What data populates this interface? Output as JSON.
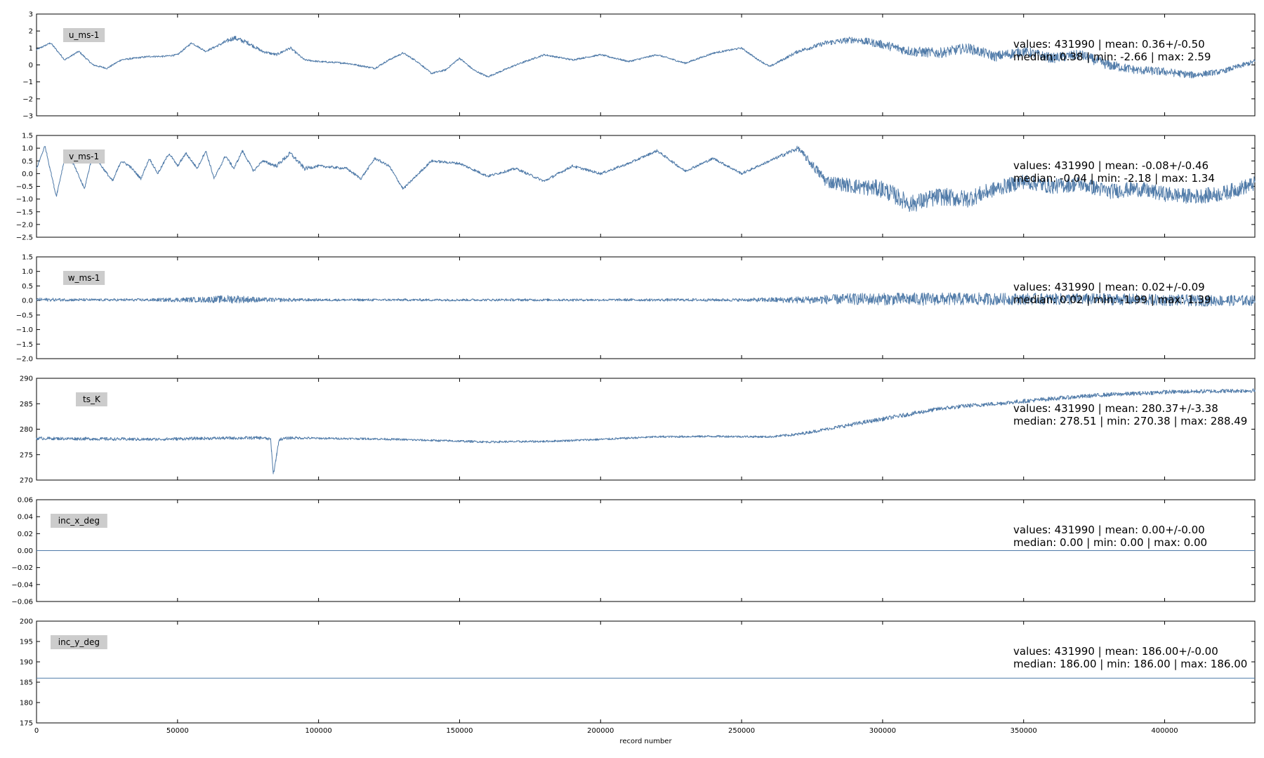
{
  "figure": {
    "xlabel": "record number"
  },
  "colors": {
    "series": "#4f7aa8",
    "label_box": "#cccccc",
    "axes": "#000000"
  },
  "chart_data": [
    {
      "type": "line",
      "name": "u_ms-1",
      "ylim": [
        -3,
        3
      ],
      "yticks": [
        "3",
        "2",
        "1",
        "0",
        "−1",
        "−2",
        "−3"
      ],
      "xlim": [
        0,
        431990
      ],
      "xticks": [
        "0",
        "50000",
        "100000",
        "150000",
        "200000",
        "250000",
        "300000",
        "350000",
        "400000"
      ],
      "stats_line1": "values: 431990 | mean: 0.36+/-0.50",
      "stats_line2": "median: 0.38 | min: -2.66 | max: 2.59",
      "x": [
        0,
        5000,
        10000,
        15000,
        20000,
        25000,
        30000,
        40000,
        45000,
        50000,
        55000,
        60000,
        65000,
        70000,
        75000,
        80000,
        85000,
        90000,
        95000,
        100000,
        110000,
        120000,
        125000,
        130000,
        135000,
        140000,
        145000,
        150000,
        155000,
        160000,
        170000,
        180000,
        190000,
        200000,
        210000,
        220000,
        230000,
        240000,
        250000,
        255000,
        260000,
        270000,
        280000,
        290000,
        300000,
        310000,
        320000,
        330000,
        340000,
        350000,
        360000,
        370000,
        380000,
        390000,
        400000,
        410000,
        420000,
        431990
      ],
      "y": [
        0.9,
        1.3,
        0.3,
        0.8,
        0.0,
        -0.2,
        0.3,
        0.5,
        0.5,
        0.6,
        1.3,
        0.8,
        1.2,
        1.6,
        1.3,
        0.8,
        0.6,
        1.0,
        0.3,
        0.2,
        0.1,
        -0.2,
        0.3,
        0.7,
        0.2,
        -0.5,
        -0.3,
        0.4,
        -0.3,
        -0.7,
        0.0,
        0.6,
        0.3,
        0.6,
        0.2,
        0.6,
        0.1,
        0.7,
        1.0,
        0.4,
        -0.1,
        0.8,
        1.3,
        1.5,
        1.2,
        0.8,
        0.7,
        1.0,
        0.5,
        0.8,
        0.4,
        0.6,
        0.0,
        -0.3,
        -0.4,
        -0.6,
        -0.4,
        0.2
      ],
      "noise": [
        0.05,
        0.05,
        0.05,
        0.05,
        0.05,
        0.05,
        0.05,
        0.05,
        0.05,
        0.05,
        0.05,
        0.05,
        0.08,
        0.15,
        0.12,
        0.08,
        0.08,
        0.08,
        0.05,
        0.05,
        0.05,
        0.05,
        0.05,
        0.05,
        0.05,
        0.05,
        0.05,
        0.05,
        0.05,
        0.05,
        0.05,
        0.05,
        0.05,
        0.05,
        0.05,
        0.05,
        0.05,
        0.05,
        0.05,
        0.05,
        0.05,
        0.1,
        0.15,
        0.2,
        0.25,
        0.3,
        0.3,
        0.3,
        0.3,
        0.3,
        0.3,
        0.3,
        0.3,
        0.25,
        0.25,
        0.2,
        0.15,
        0.15
      ]
    },
    {
      "type": "line",
      "name": "v_ms-1",
      "ylim": [
        -2.5,
        1.5
      ],
      "yticks": [
        "1.5",
        "1.0",
        "0.5",
        "0.0",
        "−0.5",
        "−1.0",
        "−1.5",
        "−2.0",
        "−2.5"
      ],
      "xlim": [
        0,
        431990
      ],
      "xticks": [
        "0",
        "50000",
        "100000",
        "150000",
        "200000",
        "250000",
        "300000",
        "350000",
        "400000"
      ],
      "stats_line1": "values: 431990 | mean: -0.08+/-0.46",
      "stats_line2": "median: -0.04 | min: -2.18 | max: 1.34",
      "x": [
        0,
        3000,
        7000,
        10000,
        13000,
        17000,
        20000,
        23000,
        27000,
        30000,
        33000,
        37000,
        40000,
        43000,
        47000,
        50000,
        53000,
        57000,
        60000,
        63000,
        67000,
        70000,
        73000,
        77000,
        80000,
        85000,
        90000,
        95000,
        100000,
        110000,
        115000,
        120000,
        125000,
        130000,
        140000,
        150000,
        160000,
        170000,
        180000,
        190000,
        200000,
        210000,
        220000,
        230000,
        240000,
        250000,
        260000,
        270000,
        280000,
        290000,
        300000,
        310000,
        320000,
        330000,
        340000,
        350000,
        360000,
        370000,
        380000,
        390000,
        400000,
        410000,
        420000,
        431990
      ],
      "y": [
        0.2,
        1.1,
        -0.9,
        0.6,
        0.4,
        -0.6,
        0.8,
        0.3,
        -0.3,
        0.5,
        0.3,
        -0.2,
        0.6,
        0.0,
        0.8,
        0.3,
        0.8,
        0.2,
        0.9,
        -0.2,
        0.7,
        0.2,
        0.9,
        0.1,
        0.5,
        0.3,
        0.8,
        0.2,
        0.3,
        0.2,
        -0.2,
        0.6,
        0.3,
        -0.6,
        0.5,
        0.4,
        -0.1,
        0.2,
        -0.3,
        0.3,
        0.0,
        0.4,
        0.9,
        0.1,
        0.6,
        0.0,
        0.5,
        1.0,
        -0.3,
        -0.5,
        -0.6,
        -1.2,
        -0.9,
        -1.0,
        -0.6,
        -0.3,
        -0.5,
        -0.4,
        -0.7,
        -0.6,
        -0.8,
        -0.9,
        -0.8,
        -0.4
      ],
      "noise": [
        0.05,
        0.05,
        0.05,
        0.05,
        0.05,
        0.05,
        0.05,
        0.05,
        0.05,
        0.05,
        0.05,
        0.05,
        0.05,
        0.05,
        0.05,
        0.05,
        0.05,
        0.05,
        0.05,
        0.05,
        0.05,
        0.05,
        0.05,
        0.05,
        0.05,
        0.08,
        0.08,
        0.08,
        0.05,
        0.05,
        0.05,
        0.05,
        0.05,
        0.05,
        0.05,
        0.05,
        0.05,
        0.05,
        0.05,
        0.05,
        0.05,
        0.05,
        0.05,
        0.05,
        0.05,
        0.05,
        0.05,
        0.1,
        0.25,
        0.3,
        0.35,
        0.35,
        0.35,
        0.35,
        0.3,
        0.3,
        0.3,
        0.3,
        0.3,
        0.3,
        0.3,
        0.3,
        0.3,
        0.3
      ]
    },
    {
      "type": "line",
      "name": "w_ms-1",
      "ylim": [
        -2.0,
        1.5
      ],
      "yticks": [
        "1.5",
        "1.0",
        "0.5",
        "0.0",
        "−0.5",
        "−1.0",
        "−1.5",
        "−2.0"
      ],
      "xlim": [
        0,
        431990
      ],
      "xticks": [
        "0",
        "50000",
        "100000",
        "150000",
        "200000",
        "250000",
        "300000",
        "350000",
        "400000"
      ],
      "stats_line1": "values: 431990 | mean: 0.02+/-0.09",
      "stats_line2": "median: 0.02 | min: -1.99 | max: 1.39",
      "x": [
        0,
        20000,
        40000,
        60000,
        70000,
        80000,
        90000,
        100000,
        150000,
        200000,
        250000,
        270000,
        290000,
        310000,
        330000,
        350000,
        370000,
        390000,
        410000,
        431990
      ],
      "y": [
        0.03,
        0.02,
        0.02,
        0.03,
        0.05,
        0.02,
        0.02,
        0.02,
        0.02,
        0.02,
        0.02,
        0.02,
        0.05,
        0.05,
        0.05,
        0.05,
        0.05,
        0.03,
        0.0,
        0.0
      ],
      "noise": [
        0.06,
        0.04,
        0.05,
        0.1,
        0.15,
        0.08,
        0.06,
        0.04,
        0.04,
        0.04,
        0.05,
        0.12,
        0.2,
        0.22,
        0.22,
        0.2,
        0.2,
        0.2,
        0.2,
        0.18
      ]
    },
    {
      "type": "line",
      "name": "ts_K",
      "ylim": [
        270,
        290
      ],
      "yticks": [
        "290",
        "285",
        "280",
        "275",
        "270"
      ],
      "xlim": [
        0,
        431990
      ],
      "xticks": [
        "0",
        "50000",
        "100000",
        "150000",
        "200000",
        "250000",
        "300000",
        "350000",
        "400000"
      ],
      "stats_line1": "values: 431990 | mean: 280.37+/-3.38",
      "stats_line2": "median: 278.51 | min: 270.38 | max: 288.49",
      "x": [
        0,
        20000,
        40000,
        60000,
        80000,
        83000,
        84000,
        86000,
        90000,
        100000,
        120000,
        140000,
        160000,
        180000,
        200000,
        220000,
        240000,
        260000,
        270000,
        280000,
        290000,
        300000,
        310000,
        320000,
        330000,
        340000,
        350000,
        360000,
        370000,
        380000,
        390000,
        400000,
        410000,
        420000,
        431990
      ],
      "y": [
        278.2,
        278.1,
        278.0,
        278.2,
        278.3,
        278.0,
        271.0,
        278.0,
        278.3,
        278.2,
        278.1,
        277.8,
        277.5,
        277.6,
        278.0,
        278.5,
        278.6,
        278.5,
        279.0,
        280.0,
        281.0,
        282.0,
        283.0,
        284.0,
        284.6,
        285.0,
        285.5,
        286.0,
        286.4,
        286.8,
        287.0,
        287.3,
        287.4,
        287.5,
        287.6
      ],
      "noise": [
        0.3,
        0.3,
        0.3,
        0.3,
        0.3,
        0.3,
        0.3,
        0.3,
        0.3,
        0.2,
        0.2,
        0.2,
        0.2,
        0.2,
        0.2,
        0.2,
        0.2,
        0.2,
        0.3,
        0.3,
        0.4,
        0.4,
        0.4,
        0.4,
        0.4,
        0.4,
        0.4,
        0.4,
        0.4,
        0.4,
        0.4,
        0.4,
        0.4,
        0.4,
        0.4
      ]
    },
    {
      "type": "line",
      "name": "inc_x_deg",
      "ylim": [
        -0.06,
        0.06
      ],
      "yticks": [
        "0.06",
        "0.04",
        "0.02",
        "0.00",
        "−0.02",
        "−0.04",
        "−0.06"
      ],
      "xlim": [
        0,
        431990
      ],
      "xticks": [
        "0",
        "50000",
        "100000",
        "150000",
        "200000",
        "250000",
        "300000",
        "350000",
        "400000"
      ],
      "stats_line1": "values: 431990 | mean: 0.00+/-0.00",
      "stats_line2": "median: 0.00 | min: 0.00 | max: 0.00",
      "x": [
        0,
        431990
      ],
      "y": [
        0.0,
        0.0
      ],
      "noise": [
        0,
        0
      ]
    },
    {
      "type": "line",
      "name": "inc_y_deg",
      "ylim": [
        175,
        200
      ],
      "yticks": [
        "200",
        "195",
        "190",
        "185",
        "180",
        "175"
      ],
      "xlim": [
        0,
        431990
      ],
      "xticks": [
        "0",
        "50000",
        "100000",
        "150000",
        "200000",
        "250000",
        "300000",
        "350000",
        "400000"
      ],
      "stats_line1": "values: 431990 | mean: 186.00+/-0.00",
      "stats_line2": "median: 186.00 | min: 186.00 | max: 186.00",
      "x": [
        0,
        431990
      ],
      "y": [
        186.0,
        186.0
      ],
      "noise": [
        0,
        0
      ]
    }
  ]
}
